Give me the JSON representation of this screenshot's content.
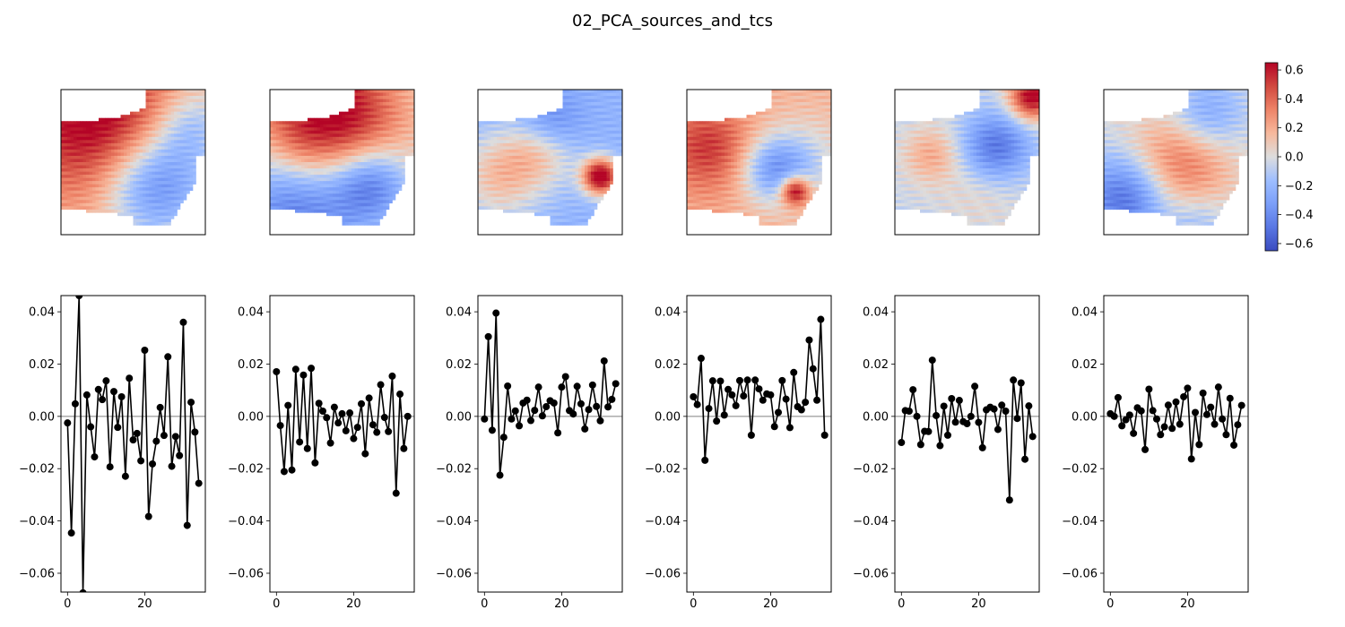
{
  "figure": {
    "title": "02_PCA_sources_and_tcs"
  },
  "colors": {
    "line": "#000000",
    "zero_line": "#808080",
    "map_missing": "#ffffff",
    "colormap": "coolwarm"
  },
  "chart_data": {
    "type": "line",
    "colorbar": {
      "range": [
        -0.65,
        0.65
      ],
      "ticks": [
        0.6,
        0.4,
        0.2,
        0.0,
        -0.2,
        -0.4,
        -0.6
      ],
      "tick_labels": [
        "0.6",
        "0.4",
        "0.2",
        "0.0",
        "−0.2",
        "−0.4",
        "−0.6"
      ]
    },
    "source_maps": [
      {
        "blobs": [
          [
            0.2,
            0.25,
            0.8,
            0.6,
            0.45
          ],
          [
            0.65,
            0.65,
            0.55,
            -0.6,
            0.35
          ],
          [
            0.25,
            0.9,
            0.4,
            -0.3,
            0.3
          ]
        ],
        "base": 0.12
      },
      {
        "blobs": [
          [
            0.2,
            0.4,
            0.6,
            0.75,
            0.45
          ],
          [
            0.8,
            0.2,
            0.5,
            -0.55,
            0.45
          ],
          [
            0.65,
            0.7,
            0.4,
            -0.5,
            0.3
          ],
          [
            0.4,
            0.2,
            0.3,
            0.05,
            0.2
          ]
        ],
        "base": 0.02
      },
      {
        "blobs": [
          [
            0.6,
            0.85,
            0.55,
            0.95,
            0.12
          ],
          [
            0.4,
            0.45,
            0.5,
            0.35,
            0.25
          ],
          [
            0.6,
            0.15,
            0.5,
            0.35,
            0.3
          ],
          [
            0.25,
            0.5,
            0.4,
            -0.3,
            0.25
          ]
        ],
        "base": -0.22
      },
      {
        "blobs": [
          [
            0.4,
            0.15,
            0.5,
            0.35,
            0.3
          ],
          [
            0.7,
            0.75,
            0.35,
            0.7,
            0.12
          ],
          [
            0.55,
            0.6,
            0.55,
            -0.45,
            0.22
          ],
          [
            0.5,
            0.85,
            0.4,
            -0.2,
            0.35
          ]
        ],
        "base": 0.18
      },
      {
        "blobs": [
          [
            0.05,
            0.95,
            0.3,
            0.75,
            0.2
          ],
          [
            0.4,
            0.7,
            0.45,
            -0.45,
            0.25
          ],
          [
            0.45,
            0.25,
            0.4,
            0.25,
            0.22
          ],
          [
            0.7,
            0.6,
            0.45,
            0.1,
            0.3
          ]
        ],
        "base": -0.05
      },
      {
        "blobs": [
          [
            0.48,
            0.55,
            0.7,
            0.45,
            0.3
          ],
          [
            0.75,
            0.15,
            0.5,
            -0.5,
            0.3
          ],
          [
            0.2,
            0.7,
            0.4,
            -0.35,
            0.3
          ],
          [
            0.9,
            0.65,
            0.3,
            -0.15,
            0.25
          ]
        ],
        "base": -0.03
      }
    ],
    "timecourse_axes": {
      "xlim": [
        -1.7,
        35.7
      ],
      "ylim": [
        -0.0672,
        0.0462
      ],
      "x_ticks": [
        0,
        20
      ],
      "x_tick_labels": [
        "0",
        "20"
      ],
      "y_ticks": [
        0.04,
        0.02,
        0.0,
        -0.02,
        -0.04,
        -0.06
      ],
      "y_tick_labels": [
        "0.04",
        "0.02",
        "0.00",
        "−0.02",
        "−0.04",
        "−0.06"
      ]
    },
    "timecourses": [
      {
        "x": [
          0,
          1,
          2,
          3,
          4,
          5,
          6,
          7,
          8,
          9,
          10,
          11,
          12,
          13,
          14,
          15,
          16,
          17,
          18,
          19,
          20,
          21,
          22,
          23,
          24,
          25,
          26,
          27,
          28,
          29,
          30,
          31,
          32,
          33,
          34
        ],
        "y": [
          -0.0025,
          -0.0446,
          0.0048,
          0.0462,
          -0.0675,
          0.0082,
          -0.004,
          -0.0155,
          0.0103,
          0.0064,
          0.0136,
          -0.0193,
          0.0095,
          -0.0042,
          0.0075,
          -0.0229,
          0.0146,
          -0.009,
          -0.0065,
          -0.017,
          0.0253,
          -0.0383,
          -0.0182,
          -0.0095,
          0.0034,
          -0.0073,
          0.0228,
          -0.0191,
          -0.0077,
          -0.015,
          0.036,
          -0.0417,
          0.0054,
          -0.006,
          -0.0256
        ]
      },
      {
        "x": [
          0,
          1,
          2,
          3,
          4,
          5,
          6,
          7,
          8,
          9,
          10,
          11,
          12,
          13,
          14,
          15,
          16,
          17,
          18,
          19,
          20,
          21,
          22,
          23,
          24,
          25,
          26,
          27,
          28,
          29,
          30,
          31,
          32,
          33,
          34
        ],
        "y": [
          0.0171,
          -0.0035,
          -0.0211,
          0.0042,
          -0.0205,
          0.018,
          -0.0098,
          0.0158,
          -0.0123,
          0.0184,
          -0.0178,
          0.005,
          0.002,
          -0.0005,
          -0.0102,
          0.0035,
          -0.0025,
          0.001,
          -0.0055,
          0.0013,
          -0.0085,
          -0.0042,
          0.0048,
          -0.0143,
          0.007,
          -0.0032,
          -0.0061,
          0.0121,
          -0.0004,
          -0.0058,
          0.0154,
          -0.0294,
          0.0085,
          -0.0123,
          0.0
        ]
      },
      {
        "x": [
          0,
          1,
          2,
          3,
          4,
          5,
          6,
          7,
          8,
          9,
          10,
          11,
          12,
          13,
          14,
          15,
          16,
          17,
          18,
          19,
          20,
          21,
          22,
          23,
          24,
          25,
          26,
          27,
          28,
          29,
          30,
          31,
          32,
          33,
          34
        ],
        "y": [
          -0.001,
          0.0305,
          -0.0053,
          0.0395,
          -0.0225,
          -0.008,
          0.0116,
          -0.001,
          0.0021,
          -0.0036,
          0.0051,
          0.0062,
          -0.0016,
          0.0023,
          0.0112,
          0.0002,
          0.0037,
          0.006,
          0.0051,
          -0.0063,
          0.0112,
          0.0152,
          0.0022,
          0.0009,
          0.0115,
          0.0048,
          -0.0048,
          0.0026,
          0.012,
          0.0038,
          -0.0017,
          0.0212,
          0.0036,
          0.0065,
          0.0125
        ]
      },
      {
        "x": [
          0,
          1,
          2,
          3,
          4,
          5,
          6,
          7,
          8,
          9,
          10,
          11,
          12,
          13,
          14,
          15,
          16,
          17,
          18,
          19,
          20,
          21,
          22,
          23,
          24,
          25,
          26,
          27,
          28,
          29,
          30,
          31,
          32,
          33,
          34
        ],
        "y": [
          0.0075,
          0.0045,
          0.0222,
          -0.0168,
          0.003,
          0.0136,
          -0.0018,
          0.0135,
          0.0005,
          0.0103,
          0.0082,
          0.0041,
          0.0137,
          0.0078,
          0.0139,
          -0.0072,
          0.0139,
          0.0105,
          0.0062,
          0.0086,
          0.0082,
          -0.0039,
          0.0015,
          0.0137,
          0.0066,
          -0.0043,
          0.0168,
          0.0037,
          0.0025,
          0.0054,
          0.0292,
          0.0182,
          0.0062,
          0.0371,
          -0.0072
        ]
      },
      {
        "x": [
          0,
          1,
          2,
          3,
          4,
          5,
          6,
          7,
          8,
          9,
          10,
          11,
          12,
          13,
          14,
          15,
          16,
          17,
          18,
          19,
          20,
          21,
          22,
          23,
          24,
          25,
          26,
          27,
          28,
          29,
          30,
          31,
          32,
          33,
          34
        ],
        "y": [
          -0.01,
          0.0022,
          0.002,
          0.0102,
          0.0,
          -0.0108,
          -0.0057,
          -0.0058,
          0.0215,
          0.0003,
          -0.0112,
          0.0039,
          -0.0072,
          0.0068,
          -0.0022,
          0.0061,
          -0.002,
          -0.0028,
          0.0,
          0.0115,
          -0.0023,
          -0.012,
          0.0025,
          0.0035,
          0.0028,
          -0.005,
          0.0043,
          0.002,
          -0.032,
          0.0139,
          -0.0008,
          0.0128,
          -0.0164,
          0.004,
          -0.0077
        ]
      },
      {
        "x": [
          0,
          1,
          2,
          3,
          4,
          5,
          6,
          7,
          8,
          9,
          10,
          11,
          12,
          13,
          14,
          15,
          16,
          17,
          18,
          19,
          20,
          21,
          22,
          23,
          24,
          25,
          26,
          27,
          28,
          29,
          30,
          31,
          32,
          33,
          34
        ],
        "y": [
          0.001,
          0.0,
          0.0072,
          -0.0036,
          -0.0013,
          0.0005,
          -0.0065,
          0.0033,
          0.0021,
          -0.0127,
          0.0104,
          0.0022,
          -0.001,
          -0.007,
          -0.004,
          0.0043,
          -0.0046,
          0.0055,
          -0.003,
          0.0075,
          0.0108,
          -0.0163,
          0.0015,
          -0.0108,
          0.0089,
          0.0007,
          0.0035,
          -0.003,
          0.0112,
          -0.001,
          -0.007,
          0.0069,
          -0.011,
          -0.0032,
          0.0042
        ]
      }
    ]
  }
}
